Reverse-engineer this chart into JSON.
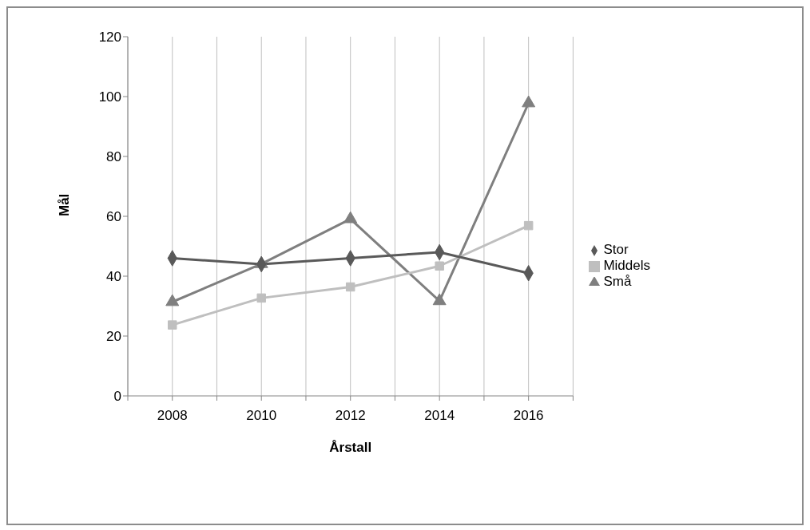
{
  "chart_data": {
    "type": "line",
    "xlabel": "Årstall",
    "ylabel": "Mål",
    "x": [
      2008,
      2010,
      2012,
      2014,
      2016
    ],
    "xlim": [
      2007,
      2017
    ],
    "xticks": [
      {
        "value": 2007,
        "label": null
      },
      2008,
      {
        "value": 2009,
        "label": null
      },
      2010,
      {
        "value": 2011,
        "label": null
      },
      2012,
      {
        "value": 2013,
        "label": null
      },
      2014,
      {
        "value": 2015,
        "label": null
      },
      2016,
      {
        "value": 2017,
        "label": null
      }
    ],
    "ylim": [
      0,
      120
    ],
    "yticks": [
      0,
      20,
      40,
      60,
      80,
      100,
      120
    ],
    "grid": "x",
    "legend": "right",
    "series": [
      {
        "name": "Stor",
        "color": "#595959",
        "marker": "diamond",
        "values": [
          46,
          44,
          46,
          48,
          41
        ]
      },
      {
        "name": "Middels",
        "color": "#bfbfbf",
        "marker": "square",
        "values": [
          23.7,
          32.7,
          36.4,
          43.4,
          56.9
        ]
      },
      {
        "name": "Små",
        "color": "#7f7f7f",
        "marker": "triangle",
        "values": [
          31.4,
          44.1,
          59.1,
          31.7,
          97.8
        ]
      }
    ]
  }
}
